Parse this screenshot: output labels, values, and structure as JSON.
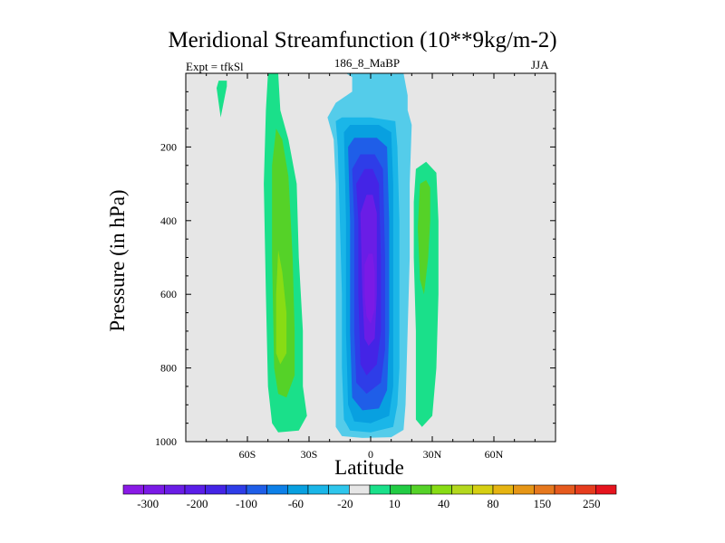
{
  "chart_data": {
    "type": "contour",
    "title": "Meridional Streamfunction (10**9kg/m-2)",
    "subtitle_left": "Expt = tfkSl",
    "subtitle_center": "186_8_MaBP",
    "subtitle_right": "JJA",
    "xlabel": "Latitude",
    "ylabel": "Pressure (in hPa)",
    "xlim": [
      -90,
      90
    ],
    "ylim": [
      1000,
      0
    ],
    "xticks": [
      {
        "value": -60,
        "label": "60S"
      },
      {
        "value": -30,
        "label": "30S"
      },
      {
        "value": 0,
        "label": "0"
      },
      {
        "value": 30,
        "label": "30N"
      },
      {
        "value": 60,
        "label": "60N"
      }
    ],
    "yticks": [
      {
        "value": 200,
        "label": "200"
      },
      {
        "value": 400,
        "label": "400"
      },
      {
        "value": 600,
        "label": "600"
      },
      {
        "value": 800,
        "label": "800"
      },
      {
        "value": 1000,
        "label": "1000"
      }
    ],
    "colorbar": {
      "colors": [
        "#8a1ae6",
        "#7a1ae6",
        "#6a1de6",
        "#5a1ee8",
        "#4424e6",
        "#2e3de8",
        "#1f5ee8",
        "#0d80e8",
        "#08a0e0",
        "#1ab6e8",
        "#2ec6ec",
        "#e6e6e6",
        "#1ae08a",
        "#22cc44",
        "#55d228",
        "#88dc14",
        "#b4d81e",
        "#d6cf12",
        "#e6b412",
        "#e69616",
        "#e6781e",
        "#e65a1e",
        "#e63c1e",
        "#e6141e"
      ],
      "labels": [
        "-300",
        "-200",
        "-100",
        "-60",
        "-20",
        "10",
        "40",
        "80",
        "150",
        "250"
      ]
    },
    "contours": [
      {
        "level": -10,
        "color": "#54ccea",
        "polygon": [
          [
            -12,
            0
          ],
          [
            -9,
            10
          ],
          [
            -9,
            50
          ],
          [
            -17,
            80
          ],
          [
            -21,
            120
          ],
          [
            -18,
            180
          ],
          [
            -17,
            300
          ],
          [
            -17,
            500
          ],
          [
            -17,
            700
          ],
          [
            -17,
            850
          ],
          [
            -17,
            920
          ],
          [
            -17,
            960
          ],
          [
            -14,
            985
          ],
          [
            -4,
            990
          ],
          [
            10,
            988
          ],
          [
            16,
            968
          ],
          [
            17,
            900
          ],
          [
            18,
            700
          ],
          [
            19,
            500
          ],
          [
            19,
            300
          ],
          [
            20,
            140
          ],
          [
            18,
            100
          ],
          [
            18,
            60
          ],
          [
            16,
            0
          ]
        ]
      },
      {
        "level": -20,
        "color": "#1ab6e8",
        "polygon": [
          [
            -17,
            130
          ],
          [
            -14,
            120
          ],
          [
            0,
            120
          ],
          [
            12,
            130
          ],
          [
            13,
            200
          ],
          [
            14,
            400
          ],
          [
            14,
            600
          ],
          [
            14,
            800
          ],
          [
            13,
            900
          ],
          [
            11,
            960
          ],
          [
            0,
            975
          ],
          [
            -10,
            970
          ],
          [
            -13,
            940
          ],
          [
            -14,
            800
          ],
          [
            -14,
            600
          ],
          [
            -15,
            400
          ],
          [
            -16,
            200
          ]
        ]
      },
      {
        "level": -40,
        "color": "#08a0e0",
        "polygon": [
          [
            -13,
            160
          ],
          [
            -10,
            140
          ],
          [
            4,
            140
          ],
          [
            10,
            160
          ],
          [
            11,
            300
          ],
          [
            11,
            600
          ],
          [
            11,
            850
          ],
          [
            9,
            930
          ],
          [
            0,
            950
          ],
          [
            -8,
            945
          ],
          [
            -11,
            900
          ],
          [
            -12,
            700
          ],
          [
            -12,
            400
          ]
        ]
      },
      {
        "level": -60,
        "color": "#1f5ee8",
        "polygon": [
          [
            -11,
            200
          ],
          [
            -8,
            175
          ],
          [
            3,
            175
          ],
          [
            8,
            200
          ],
          [
            9,
            400
          ],
          [
            9,
            700
          ],
          [
            8,
            860
          ],
          [
            4,
            910
          ],
          [
            -4,
            915
          ],
          [
            -9,
            880
          ],
          [
            -10,
            700
          ],
          [
            -10,
            400
          ]
        ]
      },
      {
        "level": -80,
        "color": "#2e3de8",
        "polygon": [
          [
            -9,
            260
          ],
          [
            -5,
            220
          ],
          [
            2,
            220
          ],
          [
            6,
            260
          ],
          [
            7,
            500
          ],
          [
            7,
            750
          ],
          [
            5,
            840
          ],
          [
            -2,
            870
          ],
          [
            -7,
            840
          ],
          [
            -8,
            700
          ],
          [
            -8,
            400
          ]
        ]
      },
      {
        "level": -100,
        "color": "#4424e6",
        "polygon": [
          [
            -7,
            300
          ],
          [
            -3,
            260
          ],
          [
            1,
            260
          ],
          [
            4,
            300
          ],
          [
            5,
            500
          ],
          [
            5,
            700
          ],
          [
            3,
            790
          ],
          [
            -2,
            820
          ],
          [
            -5,
            790
          ],
          [
            -6,
            600
          ],
          [
            -6,
            400
          ]
        ]
      },
      {
        "level": -150,
        "color": "#6a1de6",
        "polygon": [
          [
            -5,
            380
          ],
          [
            -2,
            330
          ],
          [
            1,
            330
          ],
          [
            3,
            380
          ],
          [
            3,
            600
          ],
          [
            2,
            720
          ],
          [
            -1,
            740
          ],
          [
            -3,
            720
          ],
          [
            -4,
            600
          ]
        ]
      },
      {
        "level": -200,
        "color": "#7a1ae6",
        "polygon": [
          [
            -3,
            520
          ],
          [
            -1,
            490
          ],
          [
            1,
            490
          ],
          [
            2,
            540
          ],
          [
            2,
            640
          ],
          [
            0,
            680
          ],
          [
            -2,
            660
          ],
          [
            -3,
            600
          ]
        ]
      },
      {
        "level": 10,
        "color": "#1ae08a",
        "polygon": [
          [
            -50,
            0
          ],
          [
            -45,
            0
          ],
          [
            -44,
            100
          ],
          [
            -40,
            180
          ],
          [
            -36,
            300
          ],
          [
            -35,
            500
          ],
          [
            -33,
            700
          ],
          [
            -33,
            850
          ],
          [
            -31,
            930
          ],
          [
            -35,
            970
          ],
          [
            -45,
            975
          ],
          [
            -48,
            950
          ],
          [
            -50,
            850
          ],
          [
            -51,
            600
          ],
          [
            -52,
            300
          ],
          [
            -51,
            100
          ]
        ]
      },
      {
        "level": 10,
        "color": "#1ae08a",
        "polygon": [
          [
            -74,
            20
          ],
          [
            -70,
            20
          ],
          [
            -70,
            35
          ],
          [
            -73,
            120
          ],
          [
            -75,
            40
          ]
        ]
      },
      {
        "level": 10,
        "color": "#1ae08a",
        "polygon": [
          [
            22,
            260
          ],
          [
            27,
            240
          ],
          [
            32,
            270
          ],
          [
            33,
            400
          ],
          [
            33,
            600
          ],
          [
            32,
            800
          ],
          [
            30,
            930
          ],
          [
            25,
            960
          ],
          [
            22,
            940
          ],
          [
            22,
            700
          ],
          [
            21,
            500
          ],
          [
            21,
            350
          ]
        ]
      },
      {
        "level": 40,
        "color": "#55d228",
        "polygon": [
          [
            -46,
            150
          ],
          [
            -43,
            180
          ],
          [
            -40,
            280
          ],
          [
            -38,
            500
          ],
          [
            -37,
            700
          ],
          [
            -37,
            820
          ],
          [
            -41,
            880
          ],
          [
            -45,
            870
          ],
          [
            -47,
            800
          ],
          [
            -48,
            500
          ],
          [
            -48,
            250
          ]
        ]
      },
      {
        "level": 40,
        "color": "#55d228",
        "polygon": [
          [
            24,
            300
          ],
          [
            27,
            290
          ],
          [
            29,
            310
          ],
          [
            29,
            400
          ],
          [
            28,
            500
          ],
          [
            26,
            600
          ],
          [
            24,
            560
          ],
          [
            23,
            420
          ]
        ]
      },
      {
        "level": 80,
        "color": "#88dc14",
        "polygon": [
          [
            -45,
            480
          ],
          [
            -43,
            540
          ],
          [
            -41,
            650
          ],
          [
            -41,
            760
          ],
          [
            -44,
            790
          ],
          [
            -46,
            760
          ],
          [
            -46,
            600
          ]
        ]
      }
    ]
  }
}
